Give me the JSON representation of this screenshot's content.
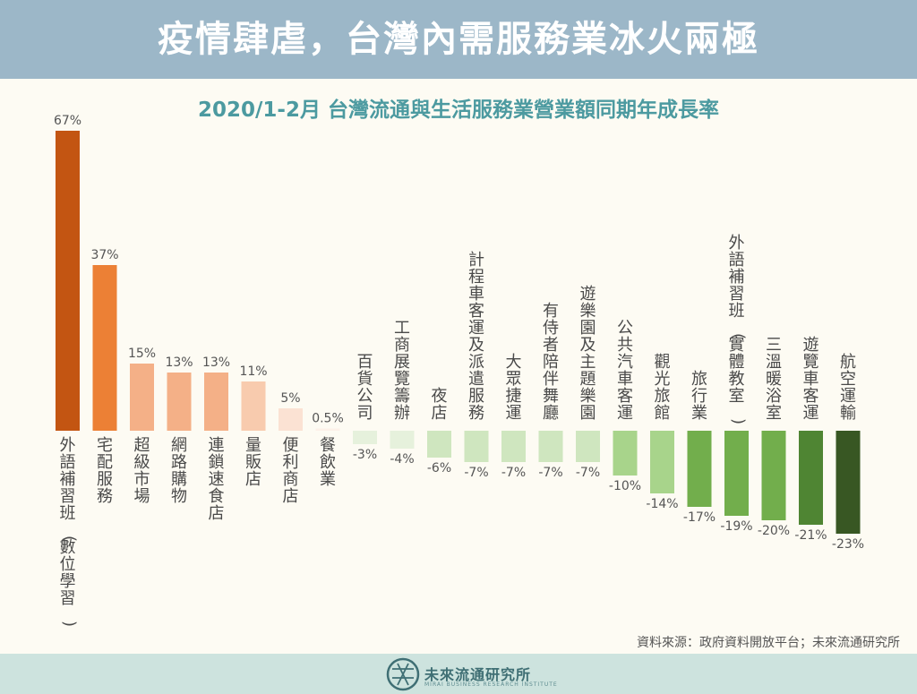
{
  "header": {
    "title": "疫情肆虐，台灣內需服務業冰火兩極"
  },
  "footer": {
    "source": "資料來源：政府資料開放平台；未來流通研究所",
    "logo_text": "未來流通研究所",
    "logo_sub": "MIRAI BUSINESS RESEARCH INSTITUTE"
  },
  "chart_data": {
    "type": "bar",
    "title": "2020/1-2月  台灣流通與生活服務業營業額同期年成長率",
    "unit": "%",
    "categories": [
      "外語補習班(數位學習)",
      "宅配服務",
      "超級市場",
      "網路購物",
      "連鎖速食店",
      "量販店",
      "便利商店",
      "餐飲業",
      "百貨公司",
      "工商展覽籌辦",
      "夜店",
      "計程車客運及派遣服務",
      "大眾捷運",
      "有侍者陪伴舞廳",
      "遊樂園及主題樂園",
      "公共汽車客運",
      "觀光旅館",
      "旅行業",
      "外語補習班(實體教室)",
      "三溫暖浴室",
      "遊覽車客運",
      "航空運輸"
    ],
    "values": [
      67,
      37,
      15,
      13,
      13,
      11,
      5,
      0.5,
      -3,
      -4,
      -6,
      -7,
      -7,
      -7,
      -7,
      -10,
      -14,
      -17,
      -19,
      -20,
      -21,
      -23
    ],
    "labels": [
      "67%",
      "37%",
      "15%",
      "13%",
      "13%",
      "11%",
      "5%",
      "0.5%",
      "-3%",
      "-4%",
      "-6%",
      "-7%",
      "-7%",
      "-7%",
      "-7%",
      "-10%",
      "-14%",
      "-17%",
      "-19%",
      "-20%",
      "-21%",
      "-23%"
    ],
    "colors": [
      "#c35512",
      "#ec8035",
      "#f4b087",
      "#f4b087",
      "#f4b087",
      "#f8cbae",
      "#fbe2d3",
      "#fdf1e8",
      "#e6f1dc",
      "#e6f1dc",
      "#cfe6bf",
      "#cfe6bf",
      "#cfe6bf",
      "#cfe6bf",
      "#cfe6bf",
      "#a8d48b",
      "#a8d48b",
      "#72ae4c",
      "#72ae4c",
      "#72ae4c",
      "#4f8533",
      "#385723"
    ],
    "grid": false,
    "legend": "none"
  }
}
